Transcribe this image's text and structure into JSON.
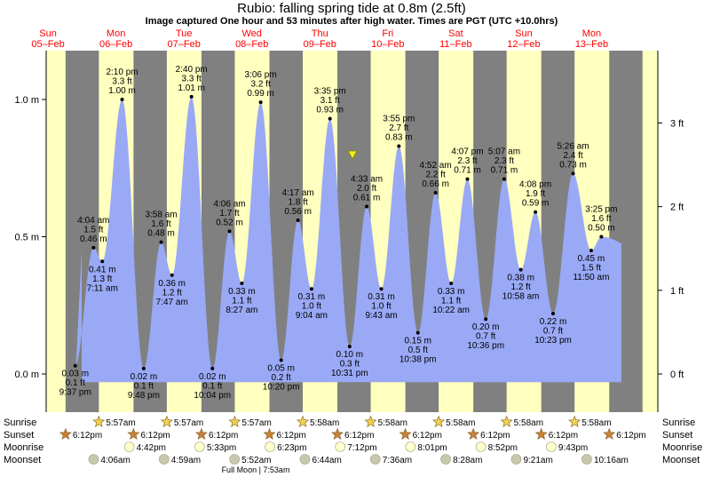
{
  "chart_data": {
    "type": "area",
    "title": "Rubio: falling  spring tide at 0.8m (2.5ft)",
    "subtitle": "Image captured One hour and 53 minutes after high water. Times are PGT (UTC +10.0hrs)",
    "y_left_ticks": [
      {
        "value": 0.0,
        "label": "0.0 m"
      },
      {
        "value": 0.5,
        "label": "0.5 m"
      },
      {
        "value": 1.0,
        "label": "1.0 m"
      }
    ],
    "y_right_ticks": [
      {
        "value": 0,
        "label": "0 ft"
      },
      {
        "value": 1,
        "label": "1 ft"
      },
      {
        "value": 2,
        "label": "2 ft"
      },
      {
        "value": 3,
        "label": "3 ft"
      }
    ],
    "ylim_m": [
      -0.14,
      1.18
    ],
    "days": [
      {
        "day": "Sun",
        "date": "05–Feb"
      },
      {
        "day": "Mon",
        "date": "06–Feb"
      },
      {
        "day": "Tue",
        "date": "07–Feb"
      },
      {
        "day": "Wed",
        "date": "08–Feb"
      },
      {
        "day": "Thu",
        "date": "09–Feb"
      },
      {
        "day": "Fri",
        "date": "10–Feb"
      },
      {
        "day": "Sat",
        "date": "11–Feb"
      },
      {
        "day": "Sun",
        "date": "12–Feb"
      },
      {
        "day": "Mon",
        "date": "13–Feb"
      }
    ],
    "tides": [
      {
        "type": "low",
        "time": "9:37 pm",
        "m": "0.03 m",
        "ft": "0.1 ft",
        "value": 0.03
      },
      {
        "type": "high",
        "time": "4:04 am",
        "m": "0.46 m",
        "ft": "1.5 ft",
        "value": 0.46
      },
      {
        "type": "low",
        "time": "7:11 am",
        "m": "0.41 m",
        "ft": "1.3 ft",
        "value": 0.41
      },
      {
        "type": "high",
        "time": "2:10 pm",
        "m": "1.00 m",
        "ft": "3.3 ft",
        "value": 1.0
      },
      {
        "type": "low",
        "time": "9:48 pm",
        "m": "0.02 m",
        "ft": "0.1 ft",
        "value": 0.02
      },
      {
        "type": "high",
        "time": "3:58 am",
        "m": "0.48 m",
        "ft": "1.6 ft",
        "value": 0.48
      },
      {
        "type": "low",
        "time": "7:47 am",
        "m": "0.36 m",
        "ft": "1.2 ft",
        "value": 0.36
      },
      {
        "type": "high",
        "time": "2:40 pm",
        "m": "1.01 m",
        "ft": "3.3 ft",
        "value": 1.01
      },
      {
        "type": "low",
        "time": "10:04 pm",
        "m": "0.02 m",
        "ft": "0.1 ft",
        "value": 0.02
      },
      {
        "type": "high",
        "time": "4:06 am",
        "m": "0.52 m",
        "ft": "1.7 ft",
        "value": 0.52
      },
      {
        "type": "low",
        "time": "8:27 am",
        "m": "0.33 m",
        "ft": "1.1 ft",
        "value": 0.33
      },
      {
        "type": "high",
        "time": "3:06 pm",
        "m": "0.99 m",
        "ft": "3.2 ft",
        "value": 0.99
      },
      {
        "type": "low",
        "time": "10:20 pm",
        "m": "0.05 m",
        "ft": "0.2 ft",
        "value": 0.05
      },
      {
        "type": "high",
        "time": "4:17 am",
        "m": "0.56 m",
        "ft": "1.8 ft",
        "value": 0.56
      },
      {
        "type": "low",
        "time": "9:04 am",
        "m": "0.31 m",
        "ft": "1.0 ft",
        "value": 0.31
      },
      {
        "type": "high",
        "time": "3:35 pm",
        "m": "0.93 m",
        "ft": "3.1 ft",
        "value": 0.93
      },
      {
        "type": "low",
        "time": "10:31 pm",
        "m": "0.10 m",
        "ft": "0.3 ft",
        "value": 0.1
      },
      {
        "type": "high",
        "time": "4:33 am",
        "m": "0.61 m",
        "ft": "2.0 ft",
        "value": 0.61
      },
      {
        "type": "low",
        "time": "9:43 am",
        "m": "0.31 m",
        "ft": "1.0 ft",
        "value": 0.31
      },
      {
        "type": "high",
        "time": "3:55 pm",
        "m": "0.83 m",
        "ft": "2.7 ft",
        "value": 0.83
      },
      {
        "type": "low",
        "time": "10:38 pm",
        "m": "0.15 m",
        "ft": "0.5 ft",
        "value": 0.15
      },
      {
        "type": "high",
        "time": "4:52 am",
        "m": "0.66 m",
        "ft": "2.2 ft",
        "value": 0.66
      },
      {
        "type": "low",
        "time": "10:22 am",
        "m": "0.33 m",
        "ft": "1.1 ft",
        "value": 0.33
      },
      {
        "type": "high",
        "time": "4:07 pm",
        "m": "0.71 m",
        "ft": "2.3 ft",
        "value": 0.71
      },
      {
        "type": "low",
        "time": "10:36 pm",
        "m": "0.20 m",
        "ft": "0.7 ft",
        "value": 0.2
      },
      {
        "type": "high",
        "time": "5:07 am",
        "m": "0.71 m",
        "ft": "2.3 ft",
        "value": 0.71
      },
      {
        "type": "low",
        "time": "10:58 am",
        "m": "0.38 m",
        "ft": "1.2 ft",
        "value": 0.38
      },
      {
        "type": "high",
        "time": "4:08 pm",
        "m": "0.59 m",
        "ft": "1.9 ft",
        "value": 0.59
      },
      {
        "type": "low",
        "time": "10:23 pm",
        "m": "0.22 m",
        "ft": "0.7 ft",
        "value": 0.22
      },
      {
        "type": "high",
        "time": "5:26 am",
        "m": "0.73 m",
        "ft": "2.4 ft",
        "value": 0.73
      },
      {
        "type": "low",
        "time": "11:50 am",
        "m": "0.45 m",
        "ft": "1.5 ft",
        "value": 0.45
      },
      {
        "type": "high",
        "time": "3:25 pm",
        "m": "0.50 m",
        "ft": "1.6 ft",
        "value": 0.5
      }
    ],
    "current_level_m": 0.8,
    "bottom_rows": {
      "labels": [
        "Sunrise",
        "Sunset",
        "Moonrise",
        "Moonset"
      ],
      "sunrise": [
        "5:57am",
        "5:57am",
        "5:57am",
        "5:58am",
        "5:58am",
        "5:58am",
        "5:58am",
        "5:58am"
      ],
      "sunset": [
        "6:12pm",
        "6:12pm",
        "6:12pm",
        "6:12pm",
        "6:12pm",
        "6:12pm",
        "6:12pm",
        "6:12pm",
        "6:12pm"
      ],
      "moonrise": [
        "4:42pm",
        "5:33pm",
        "6:23pm",
        "7:12pm",
        "8:01pm",
        "8:52pm",
        "9:43pm"
      ],
      "moonset": [
        "4:06am",
        "4:59am",
        "5:52am",
        "6:44am",
        "7:36am",
        "8:28am",
        "9:21am",
        "10:16am"
      ],
      "moon_phase_note": "Full Moon | 7:53am"
    },
    "colors": {
      "water": "#99a9f5",
      "day": "#ffffc0",
      "night": "#808080",
      "date_label": "#ff0000",
      "sun_star": "#f0d050",
      "sunset_star": "#c8803c",
      "moon_light": "#ffffd0",
      "moon_dark": "#c8c8b0",
      "marker": "#f0f020"
    }
  }
}
